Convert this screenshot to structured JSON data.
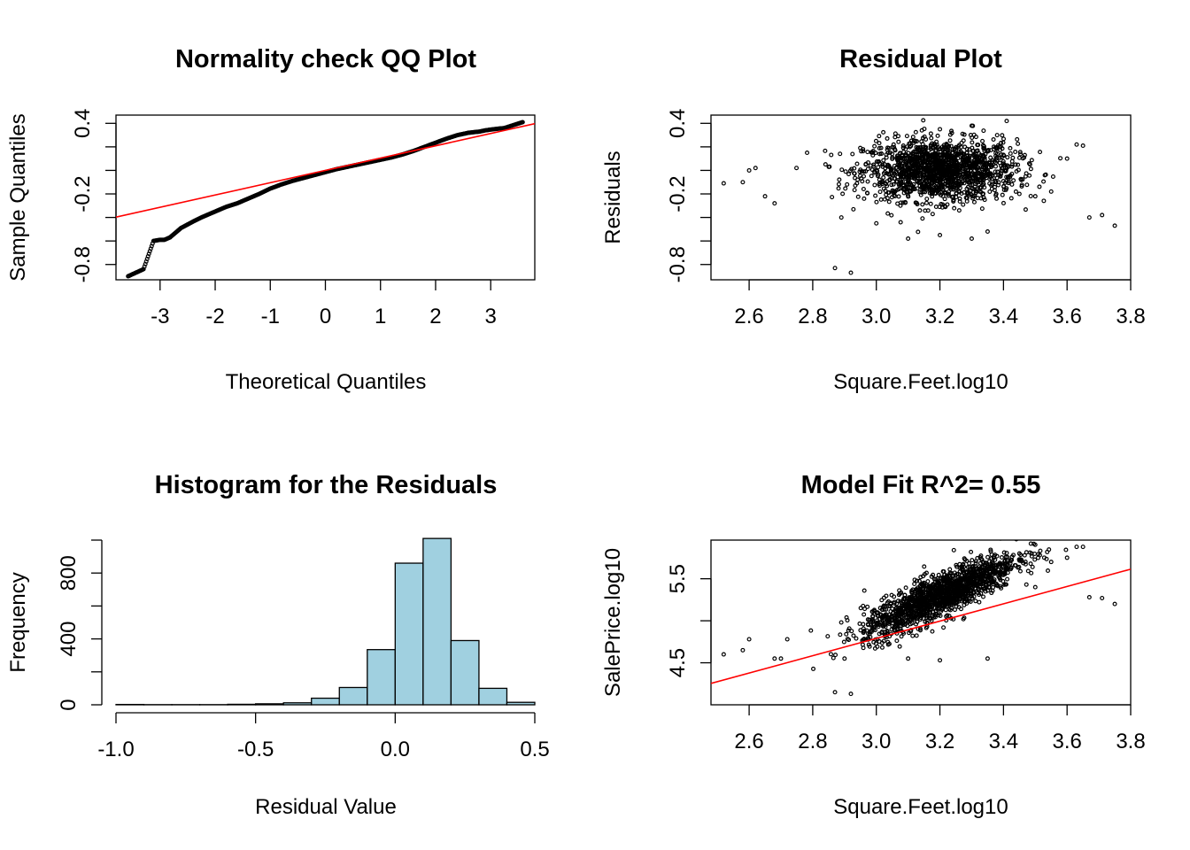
{
  "chart_data": [
    {
      "id": "qq",
      "type": "scatter",
      "title": "Normality check QQ Plot",
      "xlabel": "Theoretical Quantiles",
      "ylabel": "Sample Quantiles",
      "xlim": [
        -3.8,
        3.8
      ],
      "ylim": [
        -0.93,
        0.47
      ],
      "x_ticks": [
        -3,
        -2,
        -1,
        0,
        1,
        2,
        3
      ],
      "x_tick_labels": [
        "-3",
        "-2",
        "-1",
        "0",
        "1",
        "2",
        "3"
      ],
      "y_ticks": [
        -0.8,
        -0.6,
        -0.4,
        -0.2,
        0.0,
        0.2,
        0.4
      ],
      "y_tick_labels": [
        "-0.8",
        "",
        "",
        "-0.2",
        "",
        "",
        "0.4"
      ],
      "reference_line": {
        "intercept": 0.0,
        "slope": 0.1045,
        "color": "#ff0000"
      },
      "points": [
        [
          -3.58,
          -0.9
        ],
        [
          -3.3,
          -0.84
        ],
        [
          -3.12,
          -0.6
        ],
        [
          -3.0,
          -0.59
        ],
        [
          -2.92,
          -0.59
        ],
        [
          -2.82,
          -0.57
        ],
        [
          -2.72,
          -0.53
        ],
        [
          -2.62,
          -0.49
        ],
        [
          -2.5,
          -0.46
        ],
        [
          -2.38,
          -0.43
        ],
        [
          -2.25,
          -0.4
        ],
        [
          -2.1,
          -0.37
        ],
        [
          -1.95,
          -0.34
        ],
        [
          -1.8,
          -0.31
        ],
        [
          -1.6,
          -0.28
        ],
        [
          -1.4,
          -0.24
        ],
        [
          -1.2,
          -0.2
        ],
        [
          -1.0,
          -0.155
        ],
        [
          -0.8,
          -0.12
        ],
        [
          -0.6,
          -0.09
        ],
        [
          -0.4,
          -0.065
        ],
        [
          -0.2,
          -0.04
        ],
        [
          0.0,
          -0.015
        ],
        [
          0.2,
          0.01
        ],
        [
          0.4,
          0.03
        ],
        [
          0.6,
          0.05
        ],
        [
          0.8,
          0.07
        ],
        [
          1.0,
          0.09
        ],
        [
          1.2,
          0.11
        ],
        [
          1.4,
          0.135
        ],
        [
          1.6,
          0.165
        ],
        [
          1.8,
          0.2
        ],
        [
          2.0,
          0.235
        ],
        [
          2.2,
          0.27
        ],
        [
          2.4,
          0.3
        ],
        [
          2.6,
          0.32
        ],
        [
          2.8,
          0.33
        ],
        [
          2.9,
          0.34
        ],
        [
          3.05,
          0.35
        ],
        [
          3.25,
          0.36
        ],
        [
          3.58,
          0.41
        ]
      ],
      "point_color": "#000000"
    },
    {
      "id": "resid",
      "type": "scatter",
      "title": "Residual Plot",
      "xlabel": "Square.Feet.log10",
      "ylabel": "Residuals",
      "xlim": [
        2.48,
        3.8
      ],
      "ylim": [
        -0.93,
        0.47
      ],
      "x_ticks": [
        2.6,
        2.8,
        3.0,
        3.2,
        3.4,
        3.6,
        3.8
      ],
      "x_tick_labels": [
        "2.6",
        "2.8",
        "3.0",
        "3.2",
        "3.4",
        "3.6",
        "3.8"
      ],
      "y_ticks": [
        -0.8,
        -0.6,
        -0.4,
        -0.2,
        0.0,
        0.2,
        0.4
      ],
      "y_tick_labels": [
        "-0.8",
        "",
        "",
        "-0.2",
        "",
        "",
        "0.4"
      ],
      "cloud": {
        "center_x": 3.2,
        "spread_x": 0.12,
        "center_y": 0.0,
        "spread_y": 0.13,
        "count": 1500
      },
      "outliers": [
        [
          2.52,
          -0.11
        ],
        [
          2.58,
          -0.1
        ],
        [
          2.65,
          -0.22
        ],
        [
          2.68,
          -0.28
        ],
        [
          2.6,
          0.0
        ],
        [
          2.62,
          0.02
        ],
        [
          2.87,
          -0.83
        ],
        [
          2.92,
          -0.87
        ],
        [
          2.89,
          -0.4
        ],
        [
          3.0,
          -0.45
        ],
        [
          3.1,
          -0.58
        ],
        [
          3.2,
          -0.55
        ],
        [
          3.3,
          -0.58
        ],
        [
          3.35,
          -0.52
        ],
        [
          3.41,
          0.42
        ],
        [
          3.45,
          -0.2
        ],
        [
          3.5,
          -0.22
        ],
        [
          3.55,
          -0.18
        ],
        [
          3.6,
          0.1
        ],
        [
          3.63,
          0.22
        ],
        [
          3.65,
          0.21
        ],
        [
          3.67,
          -0.4
        ],
        [
          3.71,
          -0.38
        ],
        [
          3.75,
          -0.47
        ],
        [
          3.2,
          0.35
        ],
        [
          3.3,
          0.38
        ],
        [
          3.38,
          0.3
        ]
      ],
      "point_color": "#000000"
    },
    {
      "id": "hist",
      "type": "bar",
      "title": "Histogram for the Residuals",
      "xlabel": "Residual Value",
      "ylabel": "Frequency",
      "xlim": [
        -1.0,
        0.5
      ],
      "ylim": [
        0,
        1000
      ],
      "x_ticks": [
        -1.0,
        -0.5,
        0.0,
        0.5
      ],
      "x_tick_labels": [
        "-1.0",
        "-0.5",
        "0.0",
        "0.5"
      ],
      "y_ticks": [
        0,
        200,
        400,
        600,
        800,
        1000
      ],
      "y_tick_labels": [
        "0",
        "",
        "400",
        "",
        "800",
        ""
      ],
      "bins": [
        -1.0,
        -0.9,
        -0.8,
        -0.7,
        -0.6,
        -0.5,
        -0.4,
        -0.3,
        -0.2,
        -0.1,
        0.0,
        0.1,
        0.2,
        0.3,
        0.4
      ],
      "values": [
        2,
        1,
        1,
        1,
        3,
        6,
        12,
        40,
        105,
        335,
        860,
        1010,
        390,
        100,
        15
      ],
      "fill_color": "#a0d0e0"
    },
    {
      "id": "fit",
      "type": "scatter",
      "title": "Model Fit R^2= 0.55",
      "xlabel": "Square.Feet.log10",
      "ylabel": "SalePrice.log10",
      "xlim": [
        2.48,
        3.8
      ],
      "ylim": [
        4.0,
        5.96
      ],
      "x_ticks": [
        2.6,
        2.8,
        3.0,
        3.2,
        3.4,
        3.6,
        3.8
      ],
      "x_tick_labels": [
        "2.6",
        "2.8",
        "3.0",
        "3.2",
        "3.4",
        "3.6",
        "3.8"
      ],
      "y_ticks": [
        4.5,
        5.0,
        5.5
      ],
      "y_tick_labels": [
        "4.5",
        "",
        "5.5"
      ],
      "regression_line": {
        "intercept": 1.7,
        "slope": 1.03,
        "color": "#ff0000"
      },
      "cloud": {
        "center_x": 3.2,
        "spread_x": 0.12,
        "slope": 1.7,
        "intercept": -0.14,
        "spread_y": 0.13,
        "count": 1500
      },
      "outliers": [
        [
          2.52,
          4.6
        ],
        [
          2.58,
          4.65
        ],
        [
          2.6,
          4.78
        ],
        [
          2.68,
          4.55
        ],
        [
          2.7,
          4.55
        ],
        [
          2.72,
          4.78
        ],
        [
          2.87,
          4.15
        ],
        [
          2.92,
          4.13
        ],
        [
          2.9,
          4.55
        ],
        [
          3.1,
          4.55
        ],
        [
          3.2,
          4.53
        ],
        [
          3.35,
          4.55
        ],
        [
          3.63,
          5.88
        ],
        [
          3.65,
          5.88
        ],
        [
          3.67,
          5.28
        ],
        [
          3.71,
          5.27
        ],
        [
          3.75,
          5.2
        ],
        [
          3.55,
          5.7
        ],
        [
          3.6,
          5.75
        ],
        [
          3.5,
          5.4
        ],
        [
          3.45,
          5.8
        ]
      ],
      "point_color": "#000000"
    }
  ]
}
